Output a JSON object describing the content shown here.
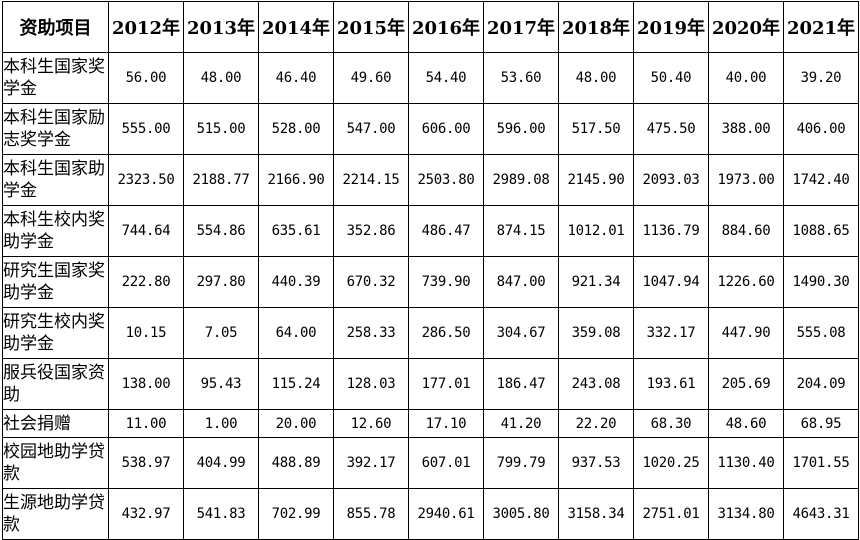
{
  "table": {
    "header_label": "资助项目",
    "years": [
      "2012年",
      "2013年",
      "2014年",
      "2015年",
      "2016年",
      "2017年",
      "2018年",
      "2019年",
      "2020年",
      "2021年"
    ],
    "rows": [
      {
        "label": "本科生国家奖学金",
        "values": [
          "56.00",
          "48.00",
          "46.40",
          "49.60",
          "54.40",
          "53.60",
          "48.00",
          "50.40",
          "40.00",
          "39.20"
        ]
      },
      {
        "label": "本科生国家励志奖学金",
        "values": [
          "555.00",
          "515.00",
          "528.00",
          "547.00",
          "606.00",
          "596.00",
          "517.50",
          "475.50",
          "388.00",
          "406.00"
        ]
      },
      {
        "label": "本科生国家助学金",
        "values": [
          "2323.50",
          "2188.77",
          "2166.90",
          "2214.15",
          "2503.80",
          "2989.08",
          "2145.90",
          "2093.03",
          "1973.00",
          "1742.40"
        ]
      },
      {
        "label": "本科生校内奖助学金",
        "values": [
          "744.64",
          "554.86",
          "635.61",
          "352.86",
          "486.47",
          "874.15",
          "1012.01",
          "1136.79",
          "884.60",
          "1088.65"
        ]
      },
      {
        "label": "研究生国家奖助学金",
        "values": [
          "222.80",
          "297.80",
          "440.39",
          "670.32",
          "739.90",
          "847.00",
          "921.34",
          "1047.94",
          "1226.60",
          "1490.30"
        ]
      },
      {
        "label": "研究生校内奖助学金",
        "values": [
          "10.15",
          "7.05",
          "64.00",
          "258.33",
          "286.50",
          "304.67",
          "359.08",
          "332.17",
          "447.90",
          "555.08"
        ]
      },
      {
        "label": "服兵役国家资助",
        "values": [
          "138.00",
          "95.43",
          "115.24",
          "128.03",
          "177.01",
          "186.47",
          "243.08",
          "193.61",
          "205.69",
          "204.09"
        ]
      },
      {
        "label": "社会捐赠",
        "values": [
          "11.00",
          "1.00",
          "20.00",
          "12.60",
          "17.10",
          "41.20",
          "22.20",
          "68.30",
          "48.60",
          "68.95"
        ]
      },
      {
        "label": "校园地助学贷款",
        "values": [
          "538.97",
          "404.99",
          "488.89",
          "392.17",
          "607.01",
          "799.79",
          "937.53",
          "1020.25",
          "1130.40",
          "1701.55"
        ]
      },
      {
        "label": "生源地助学贷款",
        "values": [
          "432.97",
          "541.83",
          "702.99",
          "855.78",
          "2940.61",
          "3005.80",
          "3158.34",
          "2751.01",
          "3134.80",
          "4643.31"
        ]
      }
    ]
  }
}
